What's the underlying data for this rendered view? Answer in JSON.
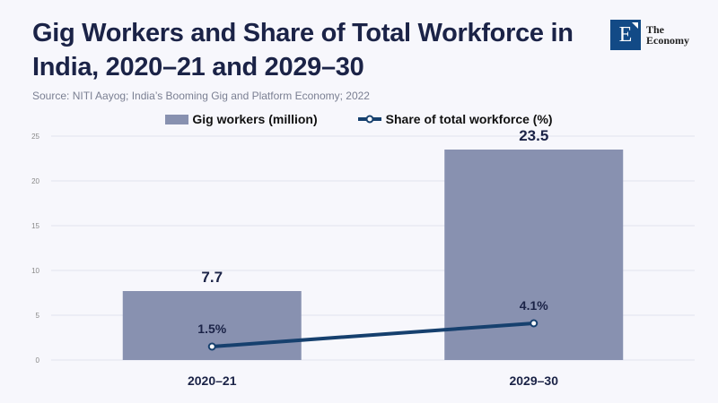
{
  "title": "Gig Workers and Share of Total Workforce in India, 2020–21 and 2029–30",
  "source": "Source: NITI Aayog; India’s Booming Gig and Platform Economy; 2022",
  "logo": {
    "mark": "E",
    "line1": "The",
    "line2": "Economy"
  },
  "colors": {
    "bar": "#8891b0",
    "line": "#16406e",
    "text": "#1b2347"
  },
  "chart_data": {
    "type": "bar",
    "categories": [
      "2020–21",
      "2029–30"
    ],
    "series": [
      {
        "name": "Gig workers (million)",
        "type": "bar",
        "values": [
          7.7,
          23.5
        ],
        "labels": [
          "7.7",
          "23.5"
        ]
      },
      {
        "name": "Share of total workforce (%)",
        "type": "line",
        "values": [
          1.5,
          4.1
        ],
        "labels": [
          "1.5%",
          "4.1%"
        ]
      }
    ],
    "yticks": [
      0,
      5,
      10,
      15,
      20,
      25
    ],
    "ylim": [
      0,
      25
    ],
    "grid": true,
    "legend": "top-center"
  }
}
